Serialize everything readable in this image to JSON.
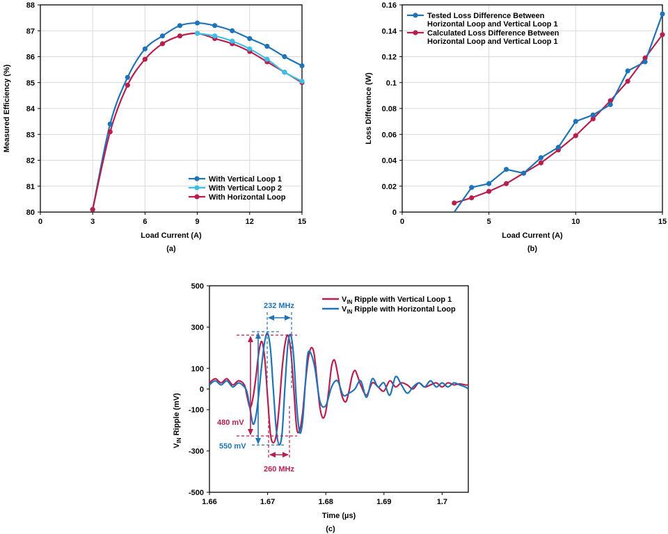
{
  "colors": {
    "blue": "#1f73b7",
    "lightblue": "#3cbfe6",
    "red": "#b81f4e",
    "axis": "#000000",
    "grid": "#d9d9d9"
  },
  "chart_data": [
    {
      "id": "a",
      "type": "line",
      "caption": "(a)",
      "xlabel": "Load Current (A)",
      "ylabel": "Measured Efficiency (%)",
      "xlim": [
        0,
        15
      ],
      "ylim": [
        80,
        88
      ],
      "xticks": [
        0,
        3,
        6,
        9,
        12,
        15
      ],
      "yticks": [
        80,
        81,
        82,
        83,
        84,
        85,
        86,
        87,
        88
      ],
      "grid": true,
      "legend_position": "bottom-right",
      "series": [
        {
          "name": "With Vertical Loop 1",
          "color_key": "blue",
          "x": [
            3,
            4,
            5,
            6,
            7,
            8,
            9,
            10,
            11,
            12,
            13,
            14,
            15
          ],
          "y": [
            80.1,
            83.4,
            85.2,
            86.3,
            86.8,
            87.2,
            87.3,
            87.2,
            87.0,
            86.7,
            86.4,
            86.0,
            85.65
          ]
        },
        {
          "name": "With Vertical Loop 2",
          "color_key": "lightblue",
          "x": [
            9,
            10,
            11,
            12,
            13,
            14,
            15
          ],
          "y": [
            86.9,
            86.8,
            86.6,
            86.3,
            85.9,
            85.4,
            85.05
          ]
        },
        {
          "name": "With Horizontal Loop",
          "color_key": "red",
          "x": [
            3,
            4,
            5,
            6,
            7,
            8,
            9,
            10,
            11,
            12,
            13,
            14,
            15
          ],
          "y": [
            80.1,
            83.1,
            84.9,
            85.9,
            86.5,
            86.8,
            86.9,
            86.7,
            86.5,
            86.2,
            85.8,
            85.4,
            85.0
          ]
        }
      ]
    },
    {
      "id": "b",
      "type": "line",
      "caption": "(b)",
      "xlabel": "Load Current (A)",
      "ylabel": "Loss Difference (W)",
      "xlim": [
        0,
        15
      ],
      "ylim": [
        0,
        0.16
      ],
      "xticks": [
        0,
        5,
        10,
        15
      ],
      "yticks": [
        0,
        0.02,
        0.04,
        0.06,
        0.08,
        0.1,
        0.12,
        0.14,
        0.16
      ],
      "grid": true,
      "legend_position": "top-left",
      "series": [
        {
          "name": "Tested Loss Difference Between Horizontal Loop and Vertical Loop 1",
          "color_key": "blue",
          "x": [
            3,
            4,
            5,
            6,
            7,
            8,
            9,
            10,
            11,
            12,
            13,
            14,
            15
          ],
          "y": [
            0.0,
            0.019,
            0.022,
            0.033,
            0.03,
            0.042,
            0.05,
            0.07,
            0.075,
            0.083,
            0.109,
            0.116,
            0.153
          ],
          "marker_from_index": 1
        },
        {
          "name": "Calculated Loss Difference Between Horizontal Loop and Vertical Loop 1",
          "color_key": "red",
          "x": [
            3,
            4,
            5,
            6,
            7,
            8,
            9,
            10,
            11,
            12,
            13,
            14,
            15
          ],
          "y": [
            0.007,
            0.011,
            0.016,
            0.022,
            0.03,
            0.038,
            0.048,
            0.059,
            0.072,
            0.086,
            0.101,
            0.119,
            0.137
          ],
          "marker_from_index": 0
        }
      ]
    },
    {
      "id": "c",
      "type": "line",
      "caption": "(c)",
      "xlabel": "Time (µs)",
      "ylabel": "V_IN Ripple (mV)",
      "xlim": [
        1.66,
        1.7045
      ],
      "ylim": [
        -500,
        500
      ],
      "xticks": [
        1.66,
        1.67,
        1.68,
        1.69,
        1.7
      ],
      "yticks": [
        -500,
        -300,
        -100,
        0,
        100,
        300,
        500
      ],
      "grid": false,
      "legend_position": "top-right",
      "series": [
        {
          "name": "V_IN Ripple with Vertical Loop 1",
          "color_key": "red",
          "x": [
            1.66,
            1.661,
            1.662,
            1.663,
            1.664,
            1.665,
            1.666,
            1.6665,
            1.667,
            1.6675,
            1.668,
            1.6685,
            1.669,
            1.6695,
            1.67,
            1.6705,
            1.671,
            1.6715,
            1.672,
            1.6725,
            1.673,
            1.6735,
            1.674,
            1.6745,
            1.675,
            1.6755,
            1.676,
            1.6765,
            1.677,
            1.6775,
            1.678,
            1.6785,
            1.679,
            1.6795,
            1.68,
            1.6805,
            1.681,
            1.6815,
            1.682,
            1.6825,
            1.683,
            1.6835,
            1.684,
            1.6845,
            1.685,
            1.6855,
            1.686,
            1.687,
            1.688,
            1.689,
            1.69,
            1.691,
            1.692,
            1.693,
            1.694,
            1.695,
            1.696,
            1.697,
            1.698,
            1.699,
            1.7,
            1.701,
            1.702,
            1.703,
            1.704,
            1.7045
          ],
          "y": [
            30,
            50,
            30,
            50,
            20,
            40,
            20,
            -40,
            -90,
            -40,
            60,
            180,
            230,
            150,
            -40,
            -220,
            -260,
            -220,
            -80,
            100,
            220,
            260,
            180,
            0,
            -190,
            -200,
            -120,
            30,
            150,
            200,
            170,
            40,
            -90,
            -140,
            -110,
            -10,
            110,
            140,
            80,
            0,
            -50,
            -60,
            -10,
            60,
            90,
            60,
            20,
            -30,
            30,
            10,
            -10,
            40,
            10,
            30,
            20,
            0,
            30,
            10,
            20,
            30,
            10,
            30,
            20,
            25,
            20,
            20
          ]
        },
        {
          "name": "V_IN Ripple with Horizontal Loop",
          "color_key": "blue",
          "x": [
            1.66,
            1.661,
            1.662,
            1.663,
            1.664,
            1.665,
            1.666,
            1.6665,
            1.667,
            1.6675,
            1.668,
            1.6685,
            1.669,
            1.6695,
            1.67,
            1.6705,
            1.671,
            1.6715,
            1.672,
            1.6725,
            1.673,
            1.6735,
            1.674,
            1.6745,
            1.675,
            1.6755,
            1.676,
            1.6765,
            1.677,
            1.678,
            1.679,
            1.68,
            1.681,
            1.682,
            1.683,
            1.684,
            1.685,
            1.686,
            1.687,
            1.688,
            1.689,
            1.69,
            1.691,
            1.692,
            1.693,
            1.694,
            1.695,
            1.696,
            1.697,
            1.698,
            1.699,
            1.7,
            1.701,
            1.702,
            1.703,
            1.704,
            1.7045
          ],
          "y": [
            20,
            40,
            20,
            40,
            10,
            30,
            10,
            -20,
            -100,
            -170,
            -130,
            -20,
            120,
            230,
            270,
            190,
            -10,
            -200,
            -270,
            -210,
            20,
            220,
            260,
            150,
            -80,
            -210,
            -160,
            30,
            180,
            120,
            -60,
            -80,
            10,
            40,
            -30,
            -20,
            0,
            40,
            -40,
            50,
            10,
            30,
            -30,
            60,
            20,
            -20,
            10,
            30,
            10,
            40,
            10,
            30,
            10,
            30,
            20,
            10,
            0
          ]
        }
      ],
      "annotations": {
        "freq_blue": "232 MHz",
        "freq_red": "260 MHz",
        "amp_red": "480 mV",
        "amp_blue": "550 mV"
      }
    }
  ]
}
